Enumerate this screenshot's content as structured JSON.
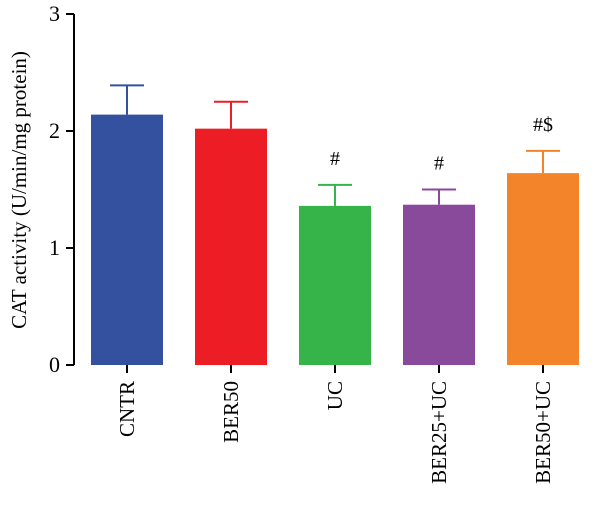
{
  "chart_data": {
    "type": "bar",
    "title": "",
    "xlabel": "",
    "ylabel": "CAT activity (U/min/mg protein)",
    "ylim": [
      0,
      3
    ],
    "yticks": [
      "0",
      "1",
      "2",
      "3"
    ],
    "categories": [
      "CNTR",
      "BER50",
      "UC",
      "BER25+UC",
      "BER50+UC"
    ],
    "values": [
      2.14,
      2.02,
      1.36,
      1.37,
      1.64
    ],
    "errors": [
      0.25,
      0.23,
      0.18,
      0.13,
      0.19
    ],
    "annotations": [
      "",
      "",
      "#",
      "#",
      "#$"
    ],
    "colors": [
      "#34519f",
      "#ec1d25",
      "#36b44a",
      "#8a4a9c",
      "#f4842a"
    ],
    "grid": false,
    "legend": "none"
  }
}
